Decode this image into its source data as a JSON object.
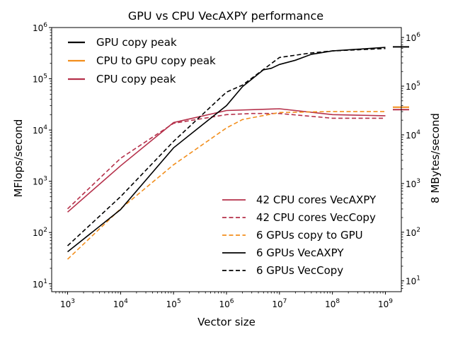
{
  "chart_data": {
    "type": "line",
    "title": "GPU vs CPU VecAXPY performance",
    "xlabel": "Vector size",
    "ylabel": "MFlops/second",
    "y2label": "8 MBytes/second",
    "xscale": "log",
    "yscale": "log",
    "xlim": [
      500,
      2000000000
    ],
    "ylim": [
      7,
      1000000
    ],
    "y2lim": [
      6,
      1600000
    ],
    "xticks": [
      {
        "value": 1000,
        "base": "10",
        "exp": "3"
      },
      {
        "value": 10000,
        "base": "10",
        "exp": "4"
      },
      {
        "value": 100000,
        "base": "10",
        "exp": "5"
      },
      {
        "value": 1000000,
        "base": "10",
        "exp": "6"
      },
      {
        "value": 10000000,
        "base": "10",
        "exp": "7"
      },
      {
        "value": 100000000,
        "base": "10",
        "exp": "8"
      },
      {
        "value": 1000000000,
        "base": "10",
        "exp": "9"
      }
    ],
    "yticks": [
      {
        "value": 10,
        "base": "10",
        "exp": "1"
      },
      {
        "value": 100,
        "base": "10",
        "exp": "2"
      },
      {
        "value": 1000,
        "base": "10",
        "exp": "3"
      },
      {
        "value": 10000,
        "base": "10",
        "exp": "4"
      },
      {
        "value": 100000,
        "base": "10",
        "exp": "5"
      },
      {
        "value": 1000000,
        "base": "10",
        "exp": "6"
      }
    ],
    "y2ticks": [
      {
        "value": 10,
        "base": "10",
        "exp": "1"
      },
      {
        "value": 100,
        "base": "10",
        "exp": "2"
      },
      {
        "value": 1000,
        "base": "10",
        "exp": "3"
      },
      {
        "value": 10000,
        "base": "10",
        "exp": "4"
      },
      {
        "value": 100000,
        "base": "10",
        "exp": "5"
      },
      {
        "value": 1000000,
        "base": "10",
        "exp": "6"
      }
    ],
    "series": [
      {
        "name": "42 CPU cores VecAXPY",
        "color": "#b5304a",
        "dash": "solid",
        "x": [
          1000,
          10000,
          100000,
          1000000,
          10000000,
          100000000,
          1000000000
        ],
        "y": [
          250,
          2000,
          14000,
          24000,
          26000,
          20000,
          19000
        ]
      },
      {
        "name": "42 CPU cores VecCopy",
        "color": "#b5304a",
        "dash": "dashed",
        "x": [
          1000,
          10000,
          100000,
          1000000,
          3000000,
          10000000,
          100000000,
          1000000000
        ],
        "y": [
          290,
          2800,
          13500,
          20000,
          21000,
          21000,
          17000,
          17000
        ]
      },
      {
        "name": "6 GPUs copy to GPU",
        "color": "#f28e1c",
        "dash": "dashed",
        "x": [
          1000,
          10000,
          100000,
          1000000,
          2000000,
          10000000,
          100000000,
          1000000000
        ],
        "y": [
          30,
          290,
          2100,
          11000,
          16000,
          22000,
          23000,
          23000
        ]
      },
      {
        "name": "6 GPUs VecAXPY",
        "color": "#000000",
        "dash": "solid",
        "x": [
          1000,
          10000,
          100000,
          1000000,
          2000000,
          5000000,
          7000000,
          10000000,
          20000000,
          40000000,
          100000000,
          1000000000
        ],
        "y": [
          42,
          280,
          4500,
          30000,
          70000,
          150000,
          160000,
          190000,
          230000,
          300000,
          350000,
          410000
        ]
      },
      {
        "name": "6 GPUs VecCopy",
        "color": "#000000",
        "dash": "dashed",
        "x": [
          1000,
          10000,
          100000,
          1000000,
          2000000,
          10000000,
          40000000,
          100000000,
          1000000000
        ],
        "y": [
          55,
          500,
          6000,
          55000,
          75000,
          260000,
          320000,
          350000,
          390000
        ]
      }
    ],
    "reference_lines": [
      {
        "name": "GPU copy peak",
        "color": "#000000",
        "axis": "y2",
        "value": 640000
      },
      {
        "name": "CPU to GPU copy peak",
        "color": "#f28e1c",
        "axis": "y2",
        "value": 37000
      },
      {
        "name": "CPU copy peak",
        "color": "#b5304a",
        "axis": "y2",
        "value": 33000
      }
    ],
    "legend_top": {
      "placement": "top-left",
      "entries": [
        "GPU copy peak",
        "CPU to GPU copy peak",
        "CPU copy peak"
      ]
    },
    "legend_bottom": {
      "placement": "bottom-right",
      "entries": [
        "42 CPU cores VecAXPY",
        "42 CPU cores VecCopy",
        "6 GPUs copy to GPU",
        "6 GPUs VecAXPY",
        "6 GPUs VecCopy"
      ]
    }
  }
}
